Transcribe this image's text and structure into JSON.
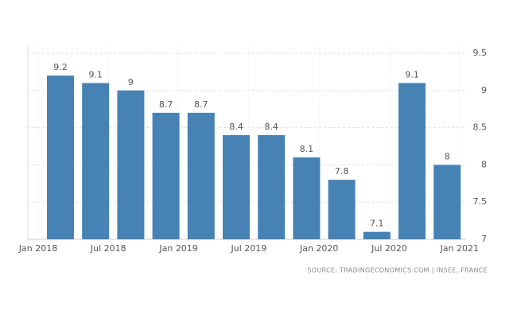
{
  "chart_data": {
    "type": "bar",
    "categories": [
      null,
      null,
      null,
      null,
      null,
      null,
      null,
      null,
      null,
      null,
      null,
      null
    ],
    "values": [
      9.2,
      9.1,
      9,
      8.7,
      8.7,
      8.4,
      8.4,
      8.1,
      7.8,
      7.1,
      9.1,
      8
    ],
    "color": "#4682b4",
    "xticks": [
      "Jan 2018",
      "Jul 2018",
      "Jan 2019",
      "Jul 2019",
      "Jan 2020",
      "Jul 2020",
      "Jan 2021"
    ],
    "ylim": [
      7,
      9.5
    ],
    "yticks": [
      7,
      7.5,
      8,
      8.5,
      9,
      9.5
    ],
    "grid": true,
    "source": "SOURCE: TRADINGECONOMICS.COM | INSEE, FRANCE"
  }
}
